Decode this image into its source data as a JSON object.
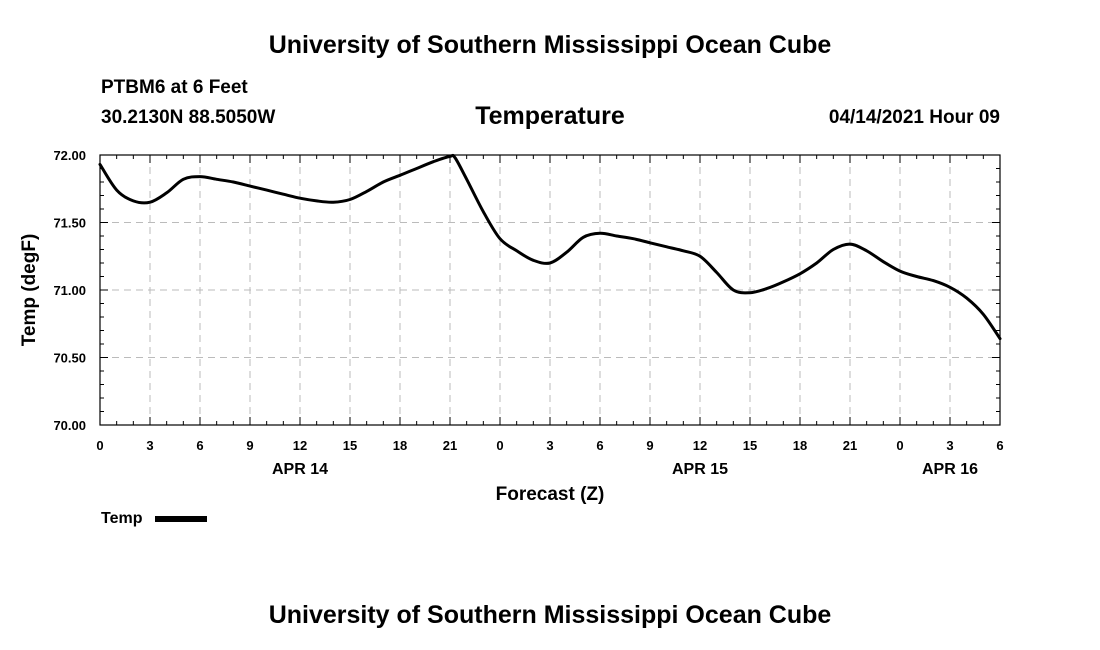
{
  "header": {
    "title_top": "University of Southern Mississippi Ocean Cube",
    "station": "PTBM6 at 6 Feet",
    "coords": "30.2130N  88.5050W",
    "variable": "Temperature",
    "timestamp": "04/14/2021 Hour 09"
  },
  "footer": {
    "title_bottom": "University of Southern Mississippi Ocean Cube"
  },
  "legend": {
    "label": "Temp",
    "color": "#000000"
  },
  "chart_data": {
    "type": "line",
    "title": "Temperature",
    "xlabel": "Forecast (Z)",
    "ylabel": "Temp (degF)",
    "ylim": [
      70.0,
      72.0
    ],
    "xlim": [
      0,
      54
    ],
    "grid": true,
    "legend_position": "bottom-left",
    "yticks": [
      "70.00",
      "70.50",
      "71.00",
      "71.50",
      "72.00"
    ],
    "ytick_values": [
      70.0,
      70.5,
      71.0,
      71.5,
      72.0
    ],
    "xtick_labels": [
      "0",
      "3",
      "6",
      "9",
      "12",
      "15",
      "18",
      "21",
      "0",
      "3",
      "6",
      "9",
      "12",
      "15",
      "18",
      "21",
      "0",
      "3",
      "6"
    ],
    "xtick_hours": [
      0,
      3,
      6,
      9,
      12,
      15,
      18,
      21,
      24,
      27,
      30,
      33,
      36,
      39,
      42,
      45,
      48,
      51,
      54
    ],
    "date_labels": [
      {
        "label": "APR 14",
        "hour": 12
      },
      {
        "label": "APR 15",
        "hour": 36
      },
      {
        "label": "APR 16",
        "hour": 51
      }
    ],
    "series": [
      {
        "name": "Temp",
        "color": "#000000",
        "x": [
          0,
          1,
          2,
          3,
          4,
          5,
          6,
          7,
          8,
          9,
          10,
          11,
          12,
          13,
          14,
          15,
          16,
          17,
          18,
          19,
          20,
          21,
          21.3,
          22,
          23,
          24,
          25,
          26,
          27,
          28,
          29,
          30,
          31,
          32,
          33,
          34,
          35,
          36,
          37,
          38,
          39,
          40,
          41,
          42,
          43,
          44,
          45,
          46,
          47,
          48,
          49,
          50,
          51,
          52,
          53,
          54
        ],
        "values": [
          71.93,
          71.74,
          71.66,
          71.65,
          71.72,
          71.82,
          71.84,
          71.82,
          71.8,
          71.77,
          71.74,
          71.71,
          71.68,
          71.66,
          71.65,
          71.67,
          71.73,
          71.8,
          71.85,
          71.9,
          71.95,
          71.99,
          71.98,
          71.82,
          71.58,
          71.38,
          71.29,
          71.22,
          71.2,
          71.28,
          71.39,
          71.42,
          71.4,
          71.38,
          71.35,
          71.32,
          71.29,
          71.25,
          71.13,
          71.0,
          70.98,
          71.01,
          71.06,
          71.12,
          71.2,
          71.3,
          71.34,
          71.29,
          71.21,
          71.14,
          71.1,
          71.07,
          71.02,
          70.94,
          70.82,
          70.64
        ]
      }
    ]
  }
}
